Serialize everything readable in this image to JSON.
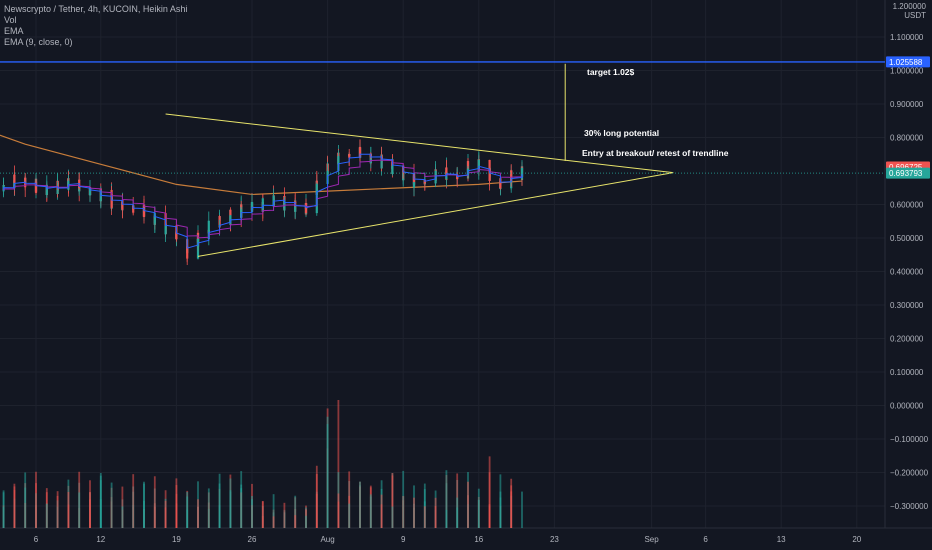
{
  "legend": {
    "title": "Newscrypto / Tether, 4h, KUCOIN, Heikin Ashi",
    "vol": "Vol",
    "ema1": "EMA",
    "ema2": "EMA (9, close, 0)"
  },
  "axis": {
    "unit_top": "1.200000",
    "unit": "USDT",
    "y_ticks": [
      "1.100000",
      "1.000000",
      "0.900000",
      "0.800000",
      "0.600000",
      "0.500000",
      "0.400000",
      "0.300000",
      "0.200000",
      "0.100000",
      "0.000000",
      "−0.100000",
      "−0.200000",
      "−0.300000"
    ],
    "y_tick_values": [
      1.1,
      1.0,
      0.9,
      0.8,
      0.6,
      0.5,
      0.4,
      0.3,
      0.2,
      0.1,
      0.0,
      -0.1,
      -0.2,
      -0.3
    ],
    "x_ticks": [
      "6",
      "12",
      "19",
      "26",
      "Aug",
      "9",
      "16",
      "23",
      "Sep",
      "6",
      "13",
      "20"
    ],
    "x_tick_dates": [
      "2021-07-06",
      "2021-07-12",
      "2021-07-19",
      "2021-07-26",
      "2021-08-02",
      "2021-08-09",
      "2021-08-16",
      "2021-08-23",
      "2021-09-01",
      "2021-09-06",
      "2021-09-13",
      "2021-09-20"
    ]
  },
  "price_labels": {
    "target_level": "1.025588",
    "red_label": "0.696725",
    "green_label": "0.693793"
  },
  "annotations": {
    "target": "target 1.02$",
    "potential": "30% long potential",
    "entry": "Entry at breakout/ retest of trendline"
  },
  "colors": {
    "bg": "#131722",
    "up": "#26a69a",
    "down": "#ef5350",
    "ema_long": "#c77c3a",
    "ema_short": "#9c27b0",
    "ema_blue": "#2962ff",
    "trendline": "#e8e46b",
    "target_line": "#2962ff"
  },
  "chart_data": {
    "type": "candlestick",
    "symbol": "Newscrypto / Tether",
    "timeframe": "4h",
    "exchange": "KUCOIN",
    "style": "Heikin Ashi",
    "ylim": [
      -0.33,
      1.2
    ],
    "price_path": [
      {
        "x": "2021-07-01",
        "y": 0.64
      },
      {
        "x": "2021-07-04",
        "y": 0.67
      },
      {
        "x": "2021-07-07",
        "y": 0.65
      },
      {
        "x": "2021-07-10",
        "y": 0.66
      },
      {
        "x": "2021-07-13",
        "y": 0.61
      },
      {
        "x": "2021-07-16",
        "y": 0.58
      },
      {
        "x": "2021-07-19",
        "y": 0.5
      },
      {
        "x": "2021-07-20",
        "y": 0.46
      },
      {
        "x": "2021-07-22",
        "y": 0.53
      },
      {
        "x": "2021-07-25",
        "y": 0.58
      },
      {
        "x": "2021-07-28",
        "y": 0.61
      },
      {
        "x": "2021-07-31",
        "y": 0.59
      },
      {
        "x": "2021-08-02",
        "y": 0.71
      },
      {
        "x": "2021-08-04",
        "y": 0.76
      },
      {
        "x": "2021-08-07",
        "y": 0.73
      },
      {
        "x": "2021-08-10",
        "y": 0.67
      },
      {
        "x": "2021-08-13",
        "y": 0.69
      },
      {
        "x": "2021-08-16",
        "y": 0.72
      },
      {
        "x": "2021-08-18",
        "y": 0.66
      },
      {
        "x": "2021-08-20",
        "y": 0.7
      }
    ],
    "ema_long_path": [
      {
        "x": "2021-06-28",
        "y": 0.86
      },
      {
        "x": "2021-07-05",
        "y": 0.78
      },
      {
        "x": "2021-07-12",
        "y": 0.72
      },
      {
        "x": "2021-07-19",
        "y": 0.66
      },
      {
        "x": "2021-07-26",
        "y": 0.63
      },
      {
        "x": "2021-08-02",
        "y": 0.64
      },
      {
        "x": "2021-08-09",
        "y": 0.65
      },
      {
        "x": "2021-08-16",
        "y": 0.66
      },
      {
        "x": "2021-08-20",
        "y": 0.67
      }
    ],
    "drawings": {
      "upper_trendline": [
        {
          "x": "2021-07-18",
          "y": 0.87
        },
        {
          "x": "2021-09-03",
          "y": 0.695
        }
      ],
      "lower_trendline": [
        {
          "x": "2021-07-21",
          "y": 0.445
        },
        {
          "x": "2021-09-03",
          "y": 0.695
        }
      ],
      "target_level": 1.025588,
      "vertical_marker": {
        "x": "2021-08-24",
        "y_from": 0.73,
        "y_to": 1.02
      }
    },
    "volume_note": "volume bars shown at bottom of pane"
  }
}
